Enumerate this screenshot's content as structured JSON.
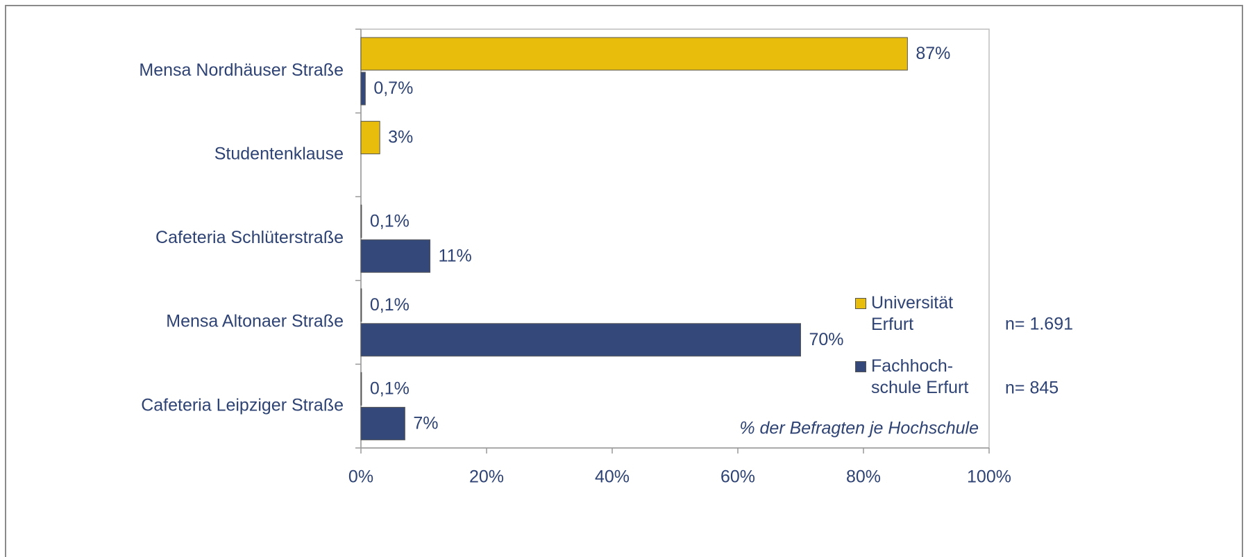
{
  "chart_data": {
    "type": "bar",
    "orientation": "horizontal",
    "categories": [
      "Mensa Nordhäuser Straße",
      "Studentenklause",
      "Cafeteria Schlüterstraße",
      "Mensa Altonaer Straße",
      "Cafeteria Leipziger Straße"
    ],
    "series": [
      {
        "name": "Universität Erfurt",
        "color": "#E8BD0B",
        "values": [
          87,
          3,
          0.1,
          0.1,
          0.1
        ],
        "value_labels": [
          "87%",
          "3%",
          "0,1%",
          "0,1%",
          "0,1%"
        ]
      },
      {
        "name": "Fachhoch­schule Erfurt",
        "color": "#34497A",
        "values": [
          0.7,
          null,
          11,
          70,
          7
        ],
        "value_labels": [
          "0,7%",
          null,
          "11%",
          "70%",
          "7%"
        ]
      }
    ],
    "xlim": [
      0,
      100
    ],
    "xticks": [
      {
        "value": 0,
        "label": "0%"
      },
      {
        "value": 20,
        "label": "20%"
      },
      {
        "value": 40,
        "label": "40%"
      },
      {
        "value": 60,
        "label": "60%"
      },
      {
        "value": 80,
        "label": "80%"
      },
      {
        "value": 100,
        "label": "100%"
      }
    ],
    "annotations": [
      "% der Befragten je Hochschule",
      "n= 1.691",
      "n= 845"
    ],
    "legend": "right"
  }
}
